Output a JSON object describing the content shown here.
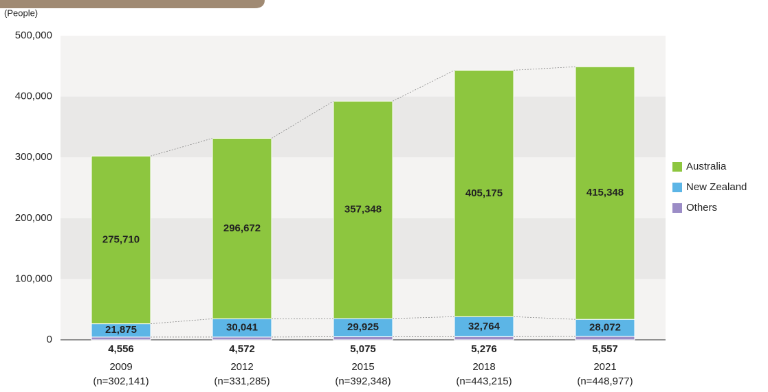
{
  "chart_data": {
    "type": "bar",
    "stacked": true,
    "y_axis_label": "(People)",
    "categories": [
      "2009",
      "2012",
      "2015",
      "2018",
      "2021"
    ],
    "category_notes": [
      "(n=302,141)",
      "(n=331,285)",
      "(n=392,348)",
      "(n=443,215)",
      "(n=448,977)"
    ],
    "series": [
      {
        "name": "Others",
        "color": "#9b8cc6",
        "values": [
          4556,
          4572,
          5075,
          5276,
          5557
        ],
        "value_labels": [
          "4,556",
          "4,572",
          "5,075",
          "5,276",
          "5,557"
        ]
      },
      {
        "name": "New Zealand",
        "color": "#5cb5e6",
        "values": [
          21875,
          30041,
          29925,
          32764,
          28072
        ],
        "value_labels": [
          "21,875",
          "30,041",
          "29,925",
          "32,764",
          "28,072"
        ]
      },
      {
        "name": "Australia",
        "color": "#8dc63f",
        "values": [
          275710,
          296672,
          357348,
          405175,
          415348
        ],
        "value_labels": [
          "275,710",
          "296,672",
          "357,348",
          "405,175",
          "415,348"
        ]
      }
    ],
    "ylim": [
      0,
      500000
    ],
    "yticks": [
      {
        "value": 0,
        "label": "0"
      },
      {
        "value": 100000,
        "label": "100,000"
      },
      {
        "value": 200000,
        "label": "200,000"
      },
      {
        "value": 300000,
        "label": "300,000"
      },
      {
        "value": 400000,
        "label": "400,000"
      },
      {
        "value": 500000,
        "label": "500,000"
      }
    ],
    "grid": true
  }
}
